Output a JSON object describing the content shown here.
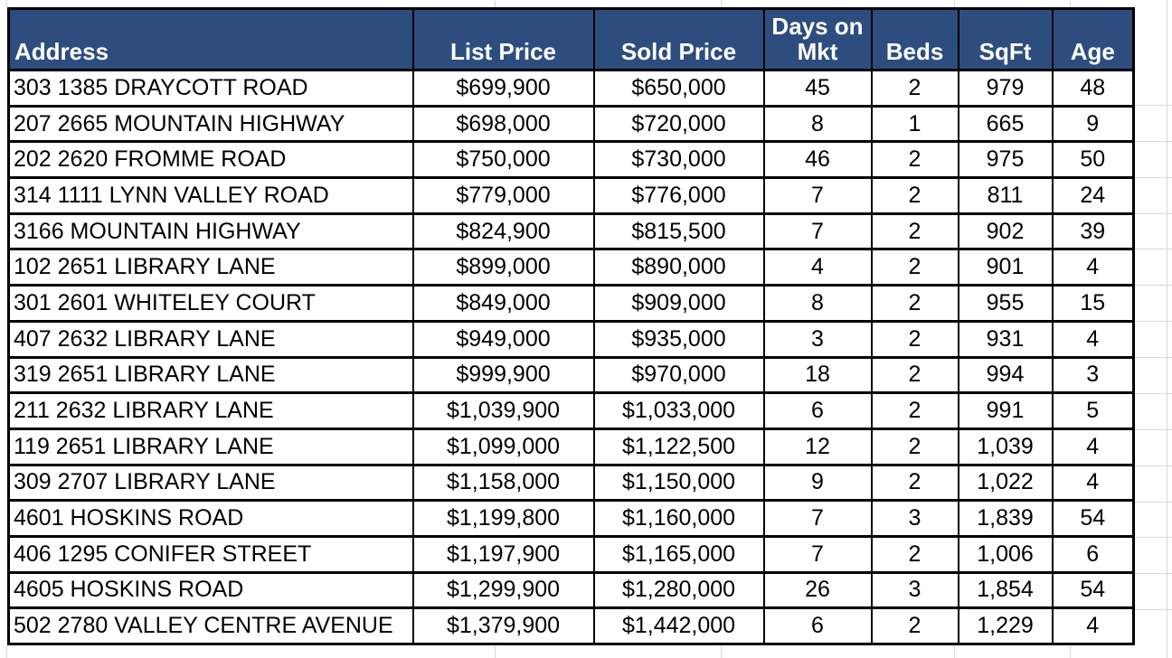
{
  "chart_data": {
    "type": "table",
    "columns": [
      {
        "key": "address",
        "label": "Address"
      },
      {
        "key": "list-price",
        "label": "List Price"
      },
      {
        "key": "sold-price",
        "label": "Sold Price"
      },
      {
        "key": "days-on-mkt",
        "label": "Days on Mkt"
      },
      {
        "key": "beds",
        "label": "Beds"
      },
      {
        "key": "sqft",
        "label": "SqFt"
      },
      {
        "key": "age",
        "label": "Age"
      }
    ],
    "rows": [
      [
        "303 1385 DRAYCOTT ROAD",
        "$699,900",
        "$650,000",
        "45",
        "2",
        "979",
        "48"
      ],
      [
        "207 2665 MOUNTAIN HIGHWAY",
        "$698,000",
        "$720,000",
        "8",
        "1",
        "665",
        "9"
      ],
      [
        "202 2620 FROMME ROAD",
        "$750,000",
        "$730,000",
        "46",
        "2",
        "975",
        "50"
      ],
      [
        "314 1111 LYNN VALLEY ROAD",
        "$779,000",
        "$776,000",
        "7",
        "2",
        "811",
        "24"
      ],
      [
        "3166 MOUNTAIN HIGHWAY",
        "$824,900",
        "$815,500",
        "7",
        "2",
        "902",
        "39"
      ],
      [
        "102 2651 LIBRARY LANE",
        "$899,000",
        "$890,000",
        "4",
        "2",
        "901",
        "4"
      ],
      [
        "301 2601 WHITELEY COURT",
        "$849,000",
        "$909,000",
        "8",
        "2",
        "955",
        "15"
      ],
      [
        "407 2632 LIBRARY LANE",
        "$949,000",
        "$935,000",
        "3",
        "2",
        "931",
        "4"
      ],
      [
        "319 2651 LIBRARY LANE",
        "$999,900",
        "$970,000",
        "18",
        "2",
        "994",
        "3"
      ],
      [
        "211 2632 LIBRARY LANE",
        "$1,039,900",
        "$1,033,000",
        "6",
        "2",
        "991",
        "5"
      ],
      [
        "119 2651 LIBRARY LANE",
        "$1,099,000",
        "$1,122,500",
        "12",
        "2",
        "1,039",
        "4"
      ],
      [
        "309 2707 LIBRARY LANE",
        "$1,158,000",
        "$1,150,000",
        "9",
        "2",
        "1,022",
        "4"
      ],
      [
        "4601 HOSKINS ROAD",
        "$1,199,800",
        "$1,160,000",
        "7",
        "3",
        "1,839",
        "54"
      ],
      [
        "406 1295 CONIFER STREET",
        "$1,197,900",
        "$1,165,000",
        "7",
        "2",
        "1,006",
        "6"
      ],
      [
        "4605 HOSKINS ROAD",
        "$1,299,900",
        "$1,280,000",
        "26",
        "3",
        "1,854",
        "54"
      ],
      [
        "502 2780 VALLEY CENTRE AVENUE",
        "$1,379,900",
        "$1,442,000",
        "6",
        "2",
        "1,229",
        "4"
      ]
    ]
  },
  "colors": {
    "header_bg": "#2E4D7F",
    "header_text": "#FFFFFF",
    "cell_text": "#000000",
    "cell_bg": "#FFFFFF",
    "table_border": "#000000",
    "gridline": "#D9D9D9"
  }
}
